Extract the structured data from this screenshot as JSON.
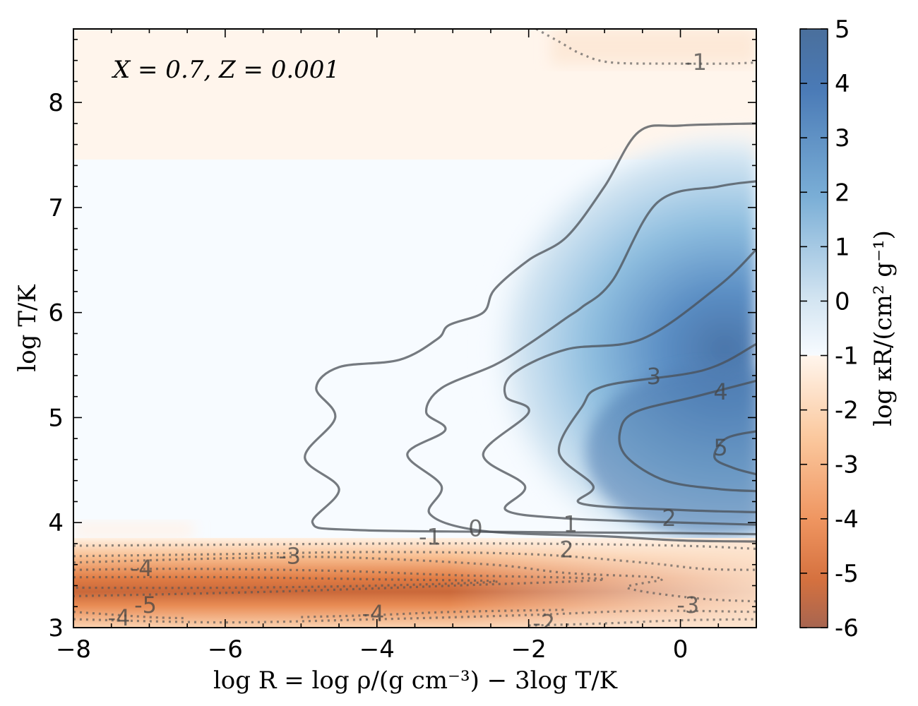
{
  "chart_data": {
    "type": "heatmap",
    "title": "",
    "annotation": "X = 0.7, Z = 0.001",
    "xlabel": "log R = log ρ/(g cm⁻³) − 3log T/K",
    "ylabel": "log T/K",
    "colorbar_label": "log κR/(cm² g⁻¹)",
    "xlim": [
      -8,
      1
    ],
    "ylim": [
      3,
      8.7
    ],
    "clim": [
      -6,
      5
    ],
    "x_ticks": [
      -8,
      -6,
      -4,
      -2,
      0
    ],
    "x_tick_labels": [
      "−8",
      "−6",
      "−4",
      "−2",
      "0"
    ],
    "y_ticks": [
      3,
      4,
      5,
      6,
      7,
      8
    ],
    "y_tick_labels": [
      "3",
      "4",
      "5",
      "6",
      "7",
      "8"
    ],
    "colorbar_ticks": [
      5,
      4,
      3,
      2,
      1,
      0,
      -1,
      -2,
      -3,
      -4,
      -5,
      -6
    ],
    "colorbar_tick_labels": [
      "5",
      "4",
      "3",
      "2",
      "1",
      "0",
      "-1",
      "-2",
      "-3",
      "-4",
      "-5",
      "-6"
    ],
    "colormap": {
      "positive": "#4a7ab6",
      "neutral": "#f7fbff",
      "negative": "#cf6f3a",
      "min": "#a76550"
    },
    "contour_style": {
      "positive_levels": "solid",
      "negative_levels": "dotted"
    },
    "contour_labels": [
      {
        "text": "-1",
        "x": 0.2,
        "y": 8.37
      },
      {
        "text": "-1",
        "x": -3.3,
        "y": 3.85
      },
      {
        "text": "0",
        "x": -2.7,
        "y": 3.93
      },
      {
        "text": "1",
        "x": -1.45,
        "y": 3.97
      },
      {
        "text": "2",
        "x": -1.5,
        "y": 3.73
      },
      {
        "text": "2",
        "x": -0.15,
        "y": 4.03
      },
      {
        "text": "3",
        "x": -0.35,
        "y": 5.38
      },
      {
        "text": "4",
        "x": 0.53,
        "y": 5.23
      },
      {
        "text": "5",
        "x": 0.53,
        "y": 4.7
      },
      {
        "text": "-3",
        "x": -5.15,
        "y": 3.67
      },
      {
        "text": "-4",
        "x": -7.1,
        "y": 3.55
      },
      {
        "text": "-5",
        "x": -7.05,
        "y": 3.2
      },
      {
        "text": "-4",
        "x": -7.4,
        "y": 3.08
      },
      {
        "text": "-4",
        "x": -4.05,
        "y": 3.12
      },
      {
        "text": "-3",
        "x": 0.1,
        "y": 3.2
      },
      {
        "text": "-2",
        "x": -1.8,
        "y": 3.03
      }
    ],
    "contours": [
      {
        "level": 0,
        "style": "solid",
        "points": [
          [
            1.0,
            7.8
          ],
          [
            0.0,
            7.78
          ],
          [
            -0.55,
            7.72
          ],
          [
            -1.0,
            7.2
          ],
          [
            -1.5,
            6.72
          ],
          [
            -2.0,
            6.5
          ],
          [
            -2.45,
            6.22
          ],
          [
            -2.6,
            6.0
          ],
          [
            -3.05,
            5.88
          ],
          [
            -3.2,
            5.75
          ],
          [
            -3.7,
            5.55
          ],
          [
            -4.5,
            5.48
          ],
          [
            -4.8,
            5.28
          ],
          [
            -4.55,
            5.0
          ],
          [
            -4.95,
            4.62
          ],
          [
            -4.5,
            4.32
          ],
          [
            -4.85,
            4.0
          ],
          [
            -4.3,
            3.93
          ],
          [
            -2.0,
            3.91
          ],
          [
            0.0,
            3.9
          ],
          [
            1.0,
            3.89
          ]
        ]
      },
      {
        "level": 1,
        "style": "solid",
        "points": [
          [
            1.0,
            7.25
          ],
          [
            0.5,
            7.2
          ],
          [
            -0.3,
            7.05
          ],
          [
            -0.9,
            6.3
          ],
          [
            -1.3,
            6.05
          ],
          [
            -1.5,
            5.95
          ],
          [
            -2.0,
            5.7
          ],
          [
            -2.45,
            5.5
          ],
          [
            -3.15,
            5.28
          ],
          [
            -3.35,
            5.05
          ],
          [
            -3.1,
            4.88
          ],
          [
            -3.6,
            4.65
          ],
          [
            -3.15,
            4.35
          ],
          [
            -3.3,
            4.08
          ],
          [
            -2.6,
            3.92
          ],
          [
            -1.0,
            3.87
          ],
          [
            0.0,
            3.83
          ],
          [
            1.0,
            3.82
          ]
        ]
      },
      {
        "level": 2,
        "style": "solid",
        "points": [
          [
            1.0,
            6.6
          ],
          [
            0.5,
            6.25
          ],
          [
            -0.5,
            5.75
          ],
          [
            -1.5,
            5.65
          ],
          [
            -2.2,
            5.42
          ],
          [
            -2.3,
            5.2
          ],
          [
            -2.0,
            5.05
          ],
          [
            -2.6,
            4.65
          ],
          [
            -2.05,
            4.35
          ],
          [
            -2.3,
            4.12
          ],
          [
            -1.5,
            4.04
          ],
          [
            0.0,
            4.0
          ],
          [
            1.0,
            3.98
          ]
        ]
      },
      {
        "level": 3,
        "style": "solid",
        "points": [
          [
            1.0,
            5.7
          ],
          [
            0.3,
            5.45
          ],
          [
            -1.0,
            5.3
          ],
          [
            -1.3,
            5.1
          ],
          [
            -1.6,
            4.67
          ],
          [
            -1.15,
            4.35
          ],
          [
            -1.3,
            4.18
          ],
          [
            0.0,
            4.12
          ],
          [
            1.0,
            4.1
          ]
        ]
      },
      {
        "level": 4,
        "style": "solid",
        "points": [
          [
            1.0,
            5.35
          ],
          [
            0.2,
            5.2
          ],
          [
            -0.6,
            5.05
          ],
          [
            -0.8,
            4.85
          ],
          [
            -0.7,
            4.62
          ],
          [
            -0.2,
            4.4
          ],
          [
            0.5,
            4.32
          ],
          [
            1.0,
            4.3
          ]
        ]
      },
      {
        "level": 5,
        "style": "solid",
        "points": [
          [
            1.0,
            4.87
          ],
          [
            0.6,
            4.8
          ],
          [
            0.45,
            4.62
          ],
          [
            0.7,
            4.52
          ],
          [
            1.0,
            4.46
          ]
        ]
      },
      {
        "level": -1,
        "style": "dotted",
        "points": [
          [
            -1.9,
            8.7
          ],
          [
            -1.6,
            8.58
          ],
          [
            -1.3,
            8.46
          ],
          [
            -0.9,
            8.38
          ],
          [
            0.0,
            8.37
          ],
          [
            0.6,
            8.37
          ],
          [
            1.0,
            8.38
          ]
        ]
      },
      {
        "level": -1,
        "style": "dotted",
        "points": [
          [
            -8.0,
            3.78
          ],
          [
            -6.0,
            3.79
          ],
          [
            -4.0,
            3.8
          ],
          [
            -2.0,
            3.8
          ],
          [
            0.0,
            3.78
          ],
          [
            1.0,
            3.75
          ]
        ]
      },
      {
        "level": -2,
        "style": "dotted",
        "points": [
          [
            -8.0,
            3.68
          ],
          [
            -6.0,
            3.7
          ],
          [
            -4.0,
            3.72
          ],
          [
            -2.0,
            3.7
          ],
          [
            -0.5,
            3.62
          ],
          [
            0.3,
            3.56
          ],
          [
            1.0,
            3.55
          ]
        ]
      },
      {
        "level": -3,
        "style": "dotted",
        "points": [
          [
            -8.0,
            3.62
          ],
          [
            -6.0,
            3.66
          ],
          [
            -4.5,
            3.67
          ],
          [
            -2.5,
            3.6
          ],
          [
            -1.5,
            3.52
          ],
          [
            -0.25,
            3.47
          ],
          [
            -0.7,
            3.38
          ],
          [
            0.2,
            3.28
          ],
          [
            1.0,
            3.25
          ]
        ]
      },
      {
        "level": -4,
        "style": "dotted",
        "points": [
          [
            -8.0,
            3.55
          ],
          [
            -6.5,
            3.56
          ],
          [
            -4.5,
            3.54
          ],
          [
            -3.0,
            3.5
          ],
          [
            -1.0,
            3.46
          ],
          [
            -3.0,
            3.4
          ],
          [
            -5.5,
            3.34
          ],
          [
            -8.0,
            3.3
          ]
        ]
      },
      {
        "level": -5,
        "style": "dotted",
        "points": [
          [
            -8.0,
            3.48
          ],
          [
            -6.0,
            3.48
          ],
          [
            -4.0,
            3.46
          ],
          [
            -2.4,
            3.44
          ],
          [
            -4.0,
            3.4
          ],
          [
            -6.0,
            3.38
          ],
          [
            -8.0,
            3.38
          ]
        ]
      },
      {
        "level": -4,
        "style": "dotted",
        "points": [
          [
            -8.0,
            3.15
          ],
          [
            -7.0,
            3.1
          ],
          [
            -6.5,
            3.09
          ]
        ]
      },
      {
        "level": -4,
        "style": "dotted",
        "points": [
          [
            -5.0,
            3.1
          ],
          [
            -4.0,
            3.12
          ],
          [
            -3.0,
            3.15
          ],
          [
            -1.5,
            3.17
          ]
        ]
      },
      {
        "level": -3,
        "style": "dotted",
        "points": [
          [
            -8.0,
            3.08
          ],
          [
            -6.0,
            3.05
          ],
          [
            -4.0,
            3.08
          ],
          [
            -2.0,
            3.12
          ],
          [
            -0.5,
            3.16
          ],
          [
            1.0,
            3.15
          ]
        ]
      },
      {
        "level": -2,
        "style": "dotted",
        "points": [
          [
            -2.0,
            3.02
          ],
          [
            -1.0,
            3.04
          ],
          [
            0.0,
            3.07
          ],
          [
            1.0,
            3.08
          ]
        ]
      }
    ]
  }
}
